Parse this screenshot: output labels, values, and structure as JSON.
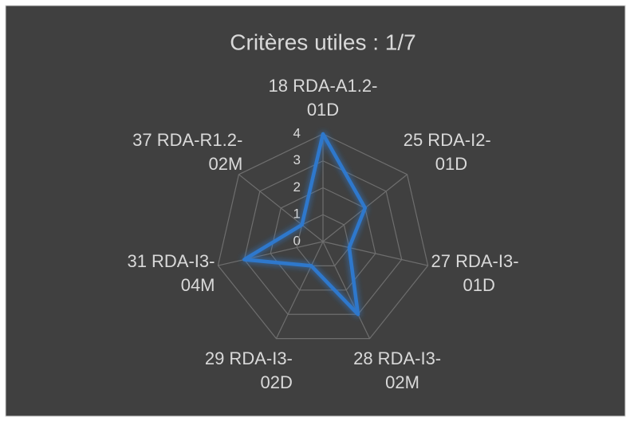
{
  "chart_data": {
    "type": "radar",
    "title": "Critères utiles : 1/7",
    "categories": [
      "18 RDA-A1.2-01D",
      "25 RDA-I2-01D",
      "27 RDA-I3-01D",
      "28 RDA-I3-02M",
      "29 RDA-I3-02D",
      "31 RDA-I3-04M",
      "37 RDA-R1.2-02M"
    ],
    "values": [
      4,
      2,
      1,
      3,
      1,
      3,
      1
    ],
    "color": "#2f78cc",
    "ylim": [
      0,
      4
    ],
    "yticks": [
      0,
      1,
      2,
      3,
      4
    ],
    "grid": true
  }
}
